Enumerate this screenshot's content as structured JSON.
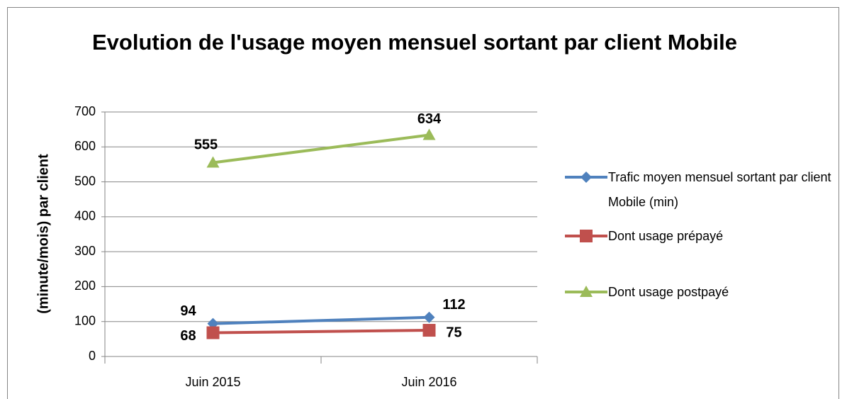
{
  "chart_data": {
    "type": "line",
    "title": "Evolution de l'usage moyen mensuel sortant par client Mobile",
    "y_label": "(minute/mois) par client",
    "categories": [
      "Juin 2015",
      "Juin 2016"
    ],
    "series": [
      {
        "name": "Trafic moyen mensuel sortant par client Mobile (min)",
        "color": "#4f81bd",
        "marker": "diamond",
        "values": [
          94,
          112
        ]
      },
      {
        "name": "Dont usage prépayé",
        "color": "#c0504d",
        "marker": "square",
        "values": [
          68,
          75
        ]
      },
      {
        "name": "Dont usage postpayé",
        "color": "#9bbb59",
        "marker": "triangle",
        "values": [
          555,
          634
        ]
      }
    ],
    "ylim": [
      0,
      700
    ],
    "yticks": [
      0,
      100,
      200,
      300,
      400,
      500,
      600,
      700
    ],
    "grid": true,
    "legend": "right"
  }
}
